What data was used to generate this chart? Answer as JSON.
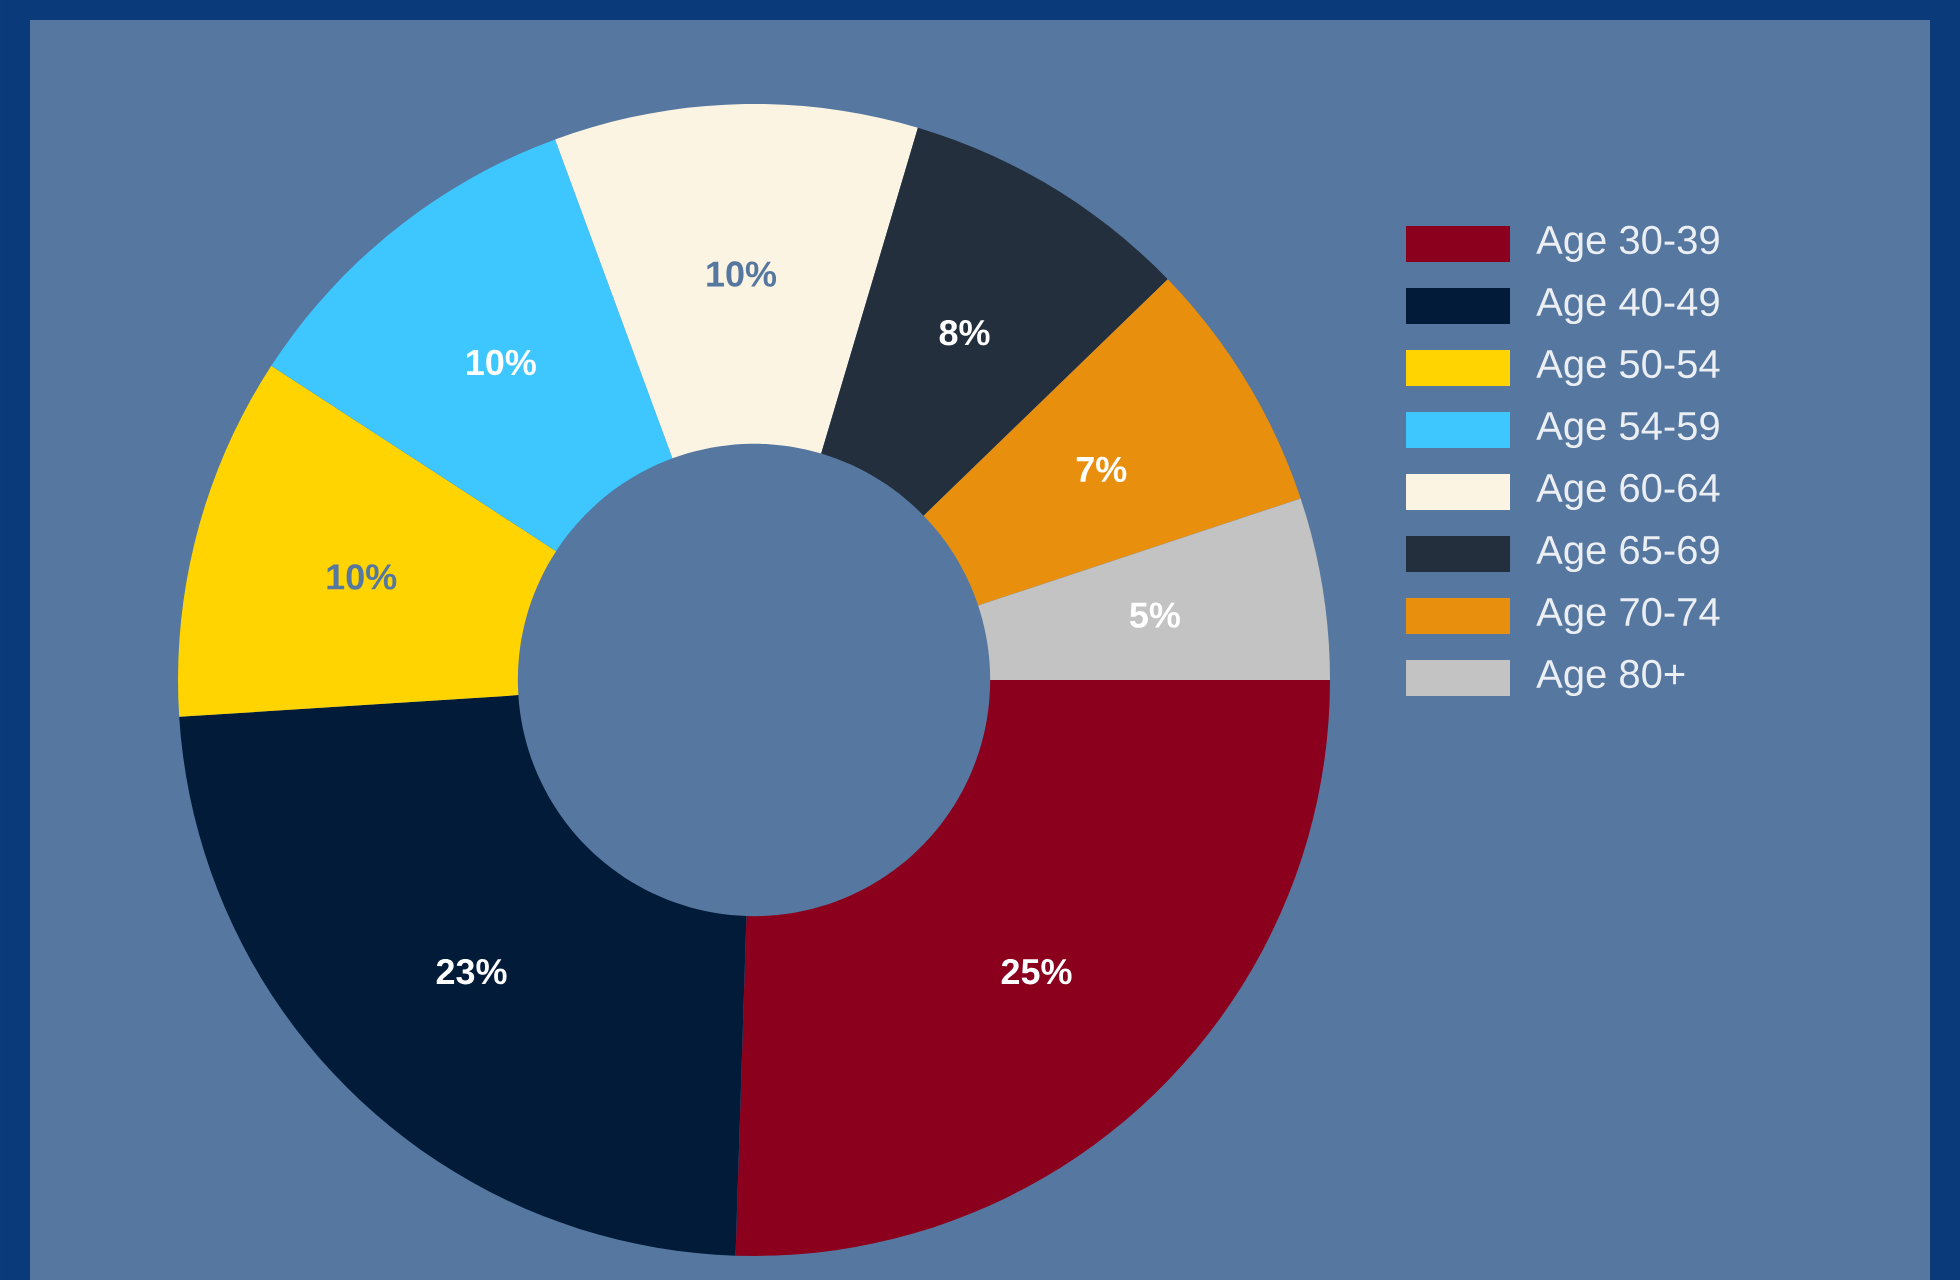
{
  "chart_data": {
    "type": "donut",
    "categories": [
      "Age 30-39",
      "Age 40-49",
      "Age 50-54",
      "Age 54-59",
      "Age 60-64",
      "Age 65-69",
      "Age 70-74",
      "Age 80+"
    ],
    "values": [
      25,
      23,
      10,
      10,
      10,
      8,
      7,
      5
    ],
    "colors": [
      "#8b001c",
      "#021b38",
      "#ffd400",
      "#3ec6ff",
      "#fcf4e2",
      "#232f3c",
      "#e8900e",
      "#c3c3c3"
    ],
    "value_labels": [
      "25%",
      "23%",
      "10%",
      "10%",
      "10%",
      "8%",
      "7%",
      "5%"
    ],
    "legend": "right"
  }
}
